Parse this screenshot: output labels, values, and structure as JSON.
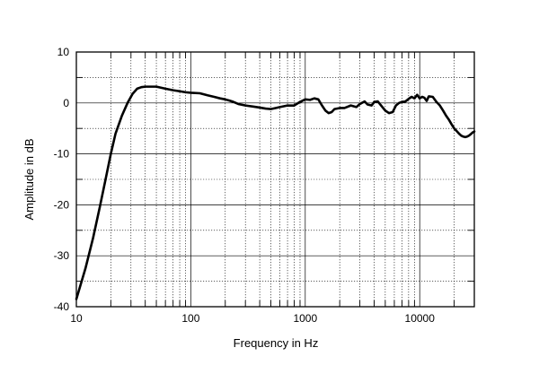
{
  "chart_data": {
    "type": "line",
    "title": "",
    "xlabel": "Frequency in Hz",
    "ylabel": "Amplitude in dB",
    "x_scale": "log",
    "xlim": [
      10,
      30000
    ],
    "ylim": [
      -40,
      10
    ],
    "x_ticks": [
      {
        "value": 10,
        "label": "10"
      },
      {
        "value": 100,
        "label": "100"
      },
      {
        "value": 1000,
        "label": "1000"
      },
      {
        "value": 10000,
        "label": "10000"
      }
    ],
    "y_ticks": [
      {
        "value": 10,
        "label": "10"
      },
      {
        "value": 0,
        "label": "0"
      },
      {
        "value": -10,
        "label": "-10"
      },
      {
        "value": -20,
        "label": "-20"
      },
      {
        "value": -30,
        "label": "-30"
      },
      {
        "value": -40,
        "label": "-40"
      }
    ],
    "grid": true,
    "minor_grid": "dotted",
    "line_color": "#000000",
    "series": [
      {
        "x": [
          10,
          12,
          14,
          16,
          18,
          20,
          22,
          25,
          28,
          31,
          34,
          37,
          40,
          45,
          50,
          60,
          70,
          80,
          90,
          100,
          120,
          140,
          160,
          180,
          200,
          230,
          260,
          300,
          350,
          400,
          450,
          500,
          550,
          600,
          700,
          800,
          900,
          1000,
          1100,
          1200,
          1300,
          1400,
          1500,
          1600,
          1700,
          1800,
          2000,
          2200,
          2500,
          2800,
          3000,
          3300,
          3500,
          3800,
          4000,
          4300,
          4600,
          5000,
          5400,
          5800,
          6200,
          6600,
          7000,
          7500,
          8000,
          8500,
          9000,
          9500,
          10000,
          10500,
          11000,
          11500,
          12000,
          13000,
          14000,
          15000,
          16000,
          17000,
          18000,
          19000,
          20000,
          21000,
          22000,
          23000,
          24000,
          25000,
          26000,
          27000,
          28000,
          29000,
          30000
        ],
        "y": [
          -38.5,
          -32.5,
          -26.5,
          -20.5,
          -15.0,
          -10.0,
          -6.0,
          -2.5,
          0.0,
          1.8,
          2.8,
          3.1,
          3.2,
          3.2,
          3.2,
          2.8,
          2.5,
          2.3,
          2.1,
          2.0,
          1.9,
          1.5,
          1.2,
          0.9,
          0.7,
          0.3,
          -0.2,
          -0.5,
          -0.7,
          -0.9,
          -1.1,
          -1.2,
          -1.0,
          -0.8,
          -0.5,
          -0.5,
          0.2,
          0.7,
          0.6,
          0.9,
          0.7,
          -0.5,
          -1.5,
          -2.0,
          -1.8,
          -1.2,
          -1.0,
          -1.0,
          -0.5,
          -0.8,
          -0.2,
          0.3,
          -0.3,
          -0.5,
          0.2,
          0.3,
          -0.5,
          -1.5,
          -2.0,
          -1.8,
          -0.5,
          0.0,
          0.2,
          0.3,
          0.8,
          1.2,
          0.9,
          1.6,
          0.9,
          1.2,
          1.0,
          0.4,
          1.3,
          1.2,
          0.2,
          -0.5,
          -1.5,
          -2.5,
          -3.3,
          -4.2,
          -5.0,
          -5.5,
          -6.0,
          -6.4,
          -6.6,
          -6.7,
          -6.6,
          -6.4,
          -6.1,
          -5.8,
          -5.6
        ]
      }
    ]
  }
}
